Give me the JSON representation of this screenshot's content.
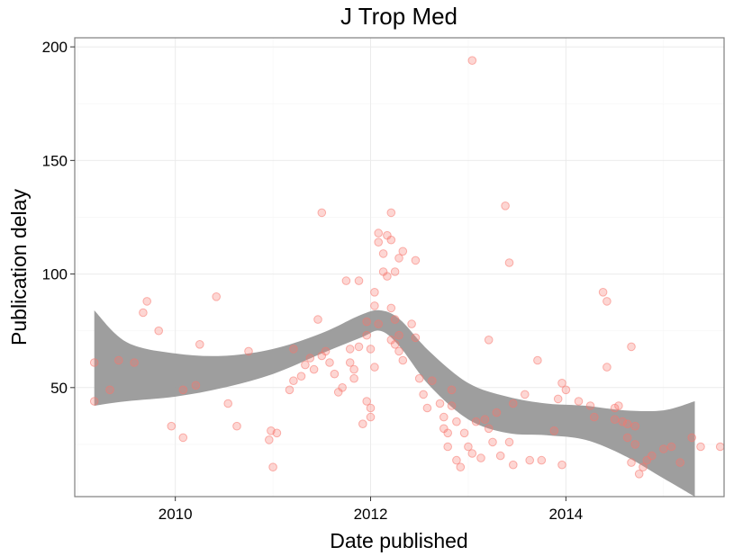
{
  "chart_data": {
    "type": "scatter",
    "title": "J Trop Med",
    "xlabel": "Date published",
    "ylabel": "Publication delay",
    "xlim": [
      2008.97,
      2015.62
    ],
    "ylim": [
      2,
      204
    ],
    "x_ticks": [
      2010,
      2012,
      2014
    ],
    "x_tick_labels": [
      "2010",
      "2012",
      "2014"
    ],
    "y_ticks": [
      50,
      100,
      150,
      200
    ],
    "y_tick_labels": [
      "50",
      "100",
      "150",
      "200"
    ],
    "x_minor_ticks": [
      2009,
      2011,
      2013,
      2015
    ],
    "y_minor_ticks": [
      25,
      75,
      125,
      175
    ],
    "grid": true,
    "point_color": "#f8766d",
    "band_color": "#999999",
    "points": [
      {
        "x": 2009.17,
        "y": 61
      },
      {
        "x": 2009.17,
        "y": 44
      },
      {
        "x": 2009.33,
        "y": 49
      },
      {
        "x": 2009.42,
        "y": 62
      },
      {
        "x": 2009.58,
        "y": 61
      },
      {
        "x": 2009.67,
        "y": 83
      },
      {
        "x": 2009.71,
        "y": 88
      },
      {
        "x": 2009.83,
        "y": 75
      },
      {
        "x": 2009.96,
        "y": 33
      },
      {
        "x": 2010.08,
        "y": 49
      },
      {
        "x": 2010.08,
        "y": 28
      },
      {
        "x": 2010.21,
        "y": 51
      },
      {
        "x": 2010.25,
        "y": 69
      },
      {
        "x": 2010.42,
        "y": 90
      },
      {
        "x": 2010.54,
        "y": 43
      },
      {
        "x": 2010.63,
        "y": 33
      },
      {
        "x": 2010.75,
        "y": 66
      },
      {
        "x": 2010.96,
        "y": 27
      },
      {
        "x": 2010.98,
        "y": 31
      },
      {
        "x": 2011.0,
        "y": 15
      },
      {
        "x": 2011.04,
        "y": 30
      },
      {
        "x": 2011.17,
        "y": 49
      },
      {
        "x": 2011.21,
        "y": 53
      },
      {
        "x": 2011.21,
        "y": 67
      },
      {
        "x": 2011.29,
        "y": 55
      },
      {
        "x": 2011.33,
        "y": 60
      },
      {
        "x": 2011.38,
        "y": 63
      },
      {
        "x": 2011.42,
        "y": 58
      },
      {
        "x": 2011.46,
        "y": 80
      },
      {
        "x": 2011.5,
        "y": 127
      },
      {
        "x": 2011.5,
        "y": 64
      },
      {
        "x": 2011.54,
        "y": 66
      },
      {
        "x": 2011.58,
        "y": 61
      },
      {
        "x": 2011.63,
        "y": 56
      },
      {
        "x": 2011.67,
        "y": 48
      },
      {
        "x": 2011.71,
        "y": 50
      },
      {
        "x": 2011.75,
        "y": 97
      },
      {
        "x": 2011.79,
        "y": 67
      },
      {
        "x": 2011.79,
        "y": 61
      },
      {
        "x": 2011.83,
        "y": 58
      },
      {
        "x": 2011.83,
        "y": 54
      },
      {
        "x": 2011.88,
        "y": 97
      },
      {
        "x": 2011.88,
        "y": 68
      },
      {
        "x": 2011.92,
        "y": 34
      },
      {
        "x": 2011.96,
        "y": 79
      },
      {
        "x": 2011.96,
        "y": 73
      },
      {
        "x": 2011.96,
        "y": 44
      },
      {
        "x": 2012.0,
        "y": 67
      },
      {
        "x": 2012.0,
        "y": 41
      },
      {
        "x": 2012.0,
        "y": 37
      },
      {
        "x": 2012.04,
        "y": 92
      },
      {
        "x": 2012.04,
        "y": 86
      },
      {
        "x": 2012.04,
        "y": 59
      },
      {
        "x": 2012.08,
        "y": 118
      },
      {
        "x": 2012.08,
        "y": 114
      },
      {
        "x": 2012.08,
        "y": 78
      },
      {
        "x": 2012.13,
        "y": 109
      },
      {
        "x": 2012.13,
        "y": 101
      },
      {
        "x": 2012.17,
        "y": 117
      },
      {
        "x": 2012.17,
        "y": 99
      },
      {
        "x": 2012.21,
        "y": 127
      },
      {
        "x": 2012.21,
        "y": 115
      },
      {
        "x": 2012.21,
        "y": 85
      },
      {
        "x": 2012.21,
        "y": 71
      },
      {
        "x": 2012.25,
        "y": 101
      },
      {
        "x": 2012.25,
        "y": 80
      },
      {
        "x": 2012.25,
        "y": 69
      },
      {
        "x": 2012.29,
        "y": 107
      },
      {
        "x": 2012.29,
        "y": 73
      },
      {
        "x": 2012.29,
        "y": 66
      },
      {
        "x": 2012.33,
        "y": 110
      },
      {
        "x": 2012.33,
        "y": 62
      },
      {
        "x": 2012.42,
        "y": 78
      },
      {
        "x": 2012.46,
        "y": 106
      },
      {
        "x": 2012.46,
        "y": 72
      },
      {
        "x": 2012.5,
        "y": 54
      },
      {
        "x": 2012.54,
        "y": 47
      },
      {
        "x": 2012.58,
        "y": 41
      },
      {
        "x": 2012.63,
        "y": 53
      },
      {
        "x": 2012.71,
        "y": 43
      },
      {
        "x": 2012.75,
        "y": 37
      },
      {
        "x": 2012.75,
        "y": 32
      },
      {
        "x": 2012.79,
        "y": 30
      },
      {
        "x": 2012.79,
        "y": 24
      },
      {
        "x": 2012.83,
        "y": 49
      },
      {
        "x": 2012.83,
        "y": 42
      },
      {
        "x": 2012.88,
        "y": 35
      },
      {
        "x": 2012.88,
        "y": 18
      },
      {
        "x": 2012.92,
        "y": 15
      },
      {
        "x": 2012.96,
        "y": 30
      },
      {
        "x": 2013.0,
        "y": 24
      },
      {
        "x": 2013.04,
        "y": 194
      },
      {
        "x": 2013.04,
        "y": 21
      },
      {
        "x": 2013.08,
        "y": 35
      },
      {
        "x": 2013.13,
        "y": 19
      },
      {
        "x": 2013.17,
        "y": 36
      },
      {
        "x": 2013.21,
        "y": 71
      },
      {
        "x": 2013.21,
        "y": 32
      },
      {
        "x": 2013.25,
        "y": 26
      },
      {
        "x": 2013.29,
        "y": 39
      },
      {
        "x": 2013.33,
        "y": 20
      },
      {
        "x": 2013.38,
        "y": 130
      },
      {
        "x": 2013.42,
        "y": 105
      },
      {
        "x": 2013.42,
        "y": 26
      },
      {
        "x": 2013.46,
        "y": 43
      },
      {
        "x": 2013.46,
        "y": 16
      },
      {
        "x": 2013.58,
        "y": 47
      },
      {
        "x": 2013.63,
        "y": 18
      },
      {
        "x": 2013.71,
        "y": 62
      },
      {
        "x": 2013.75,
        "y": 18
      },
      {
        "x": 2013.88,
        "y": 31
      },
      {
        "x": 2013.92,
        "y": 45
      },
      {
        "x": 2013.96,
        "y": 52
      },
      {
        "x": 2013.96,
        "y": 16
      },
      {
        "x": 2014.0,
        "y": 49
      },
      {
        "x": 2014.13,
        "y": 44
      },
      {
        "x": 2014.25,
        "y": 42
      },
      {
        "x": 2014.29,
        "y": 37
      },
      {
        "x": 2014.38,
        "y": 92
      },
      {
        "x": 2014.42,
        "y": 88
      },
      {
        "x": 2014.42,
        "y": 59
      },
      {
        "x": 2014.5,
        "y": 41
      },
      {
        "x": 2014.5,
        "y": 36
      },
      {
        "x": 2014.54,
        "y": 42
      },
      {
        "x": 2014.58,
        "y": 35
      },
      {
        "x": 2014.63,
        "y": 34
      },
      {
        "x": 2014.63,
        "y": 28
      },
      {
        "x": 2014.67,
        "y": 68
      },
      {
        "x": 2014.67,
        "y": 17
      },
      {
        "x": 2014.71,
        "y": 33
      },
      {
        "x": 2014.71,
        "y": 25
      },
      {
        "x": 2014.75,
        "y": 12
      },
      {
        "x": 2014.79,
        "y": 15
      },
      {
        "x": 2014.83,
        "y": 18
      },
      {
        "x": 2014.88,
        "y": 20
      },
      {
        "x": 2015.0,
        "y": 23
      },
      {
        "x": 2015.08,
        "y": 24
      },
      {
        "x": 2015.17,
        "y": 17
      },
      {
        "x": 2015.29,
        "y": 28
      },
      {
        "x": 2015.38,
        "y": 24
      },
      {
        "x": 2015.58,
        "y": 24
      }
    ],
    "smooth_band": {
      "x": [
        2009.17,
        2009.5,
        2010.0,
        2010.5,
        2011.0,
        2011.5,
        2011.9,
        2012.1,
        2012.3,
        2012.6,
        2013.0,
        2013.4,
        2013.8,
        2014.2,
        2014.6,
        2015.0,
        2015.32
      ],
      "upper": [
        84,
        70,
        65,
        64,
        67,
        74,
        82,
        84,
        80,
        66,
        52,
        46,
        43,
        42,
        40,
        40,
        44
      ],
      "lower": [
        42,
        44,
        46,
        50,
        56,
        65,
        72,
        75,
        68,
        51,
        36,
        30,
        29,
        27,
        20,
        10,
        2
      ]
    }
  }
}
